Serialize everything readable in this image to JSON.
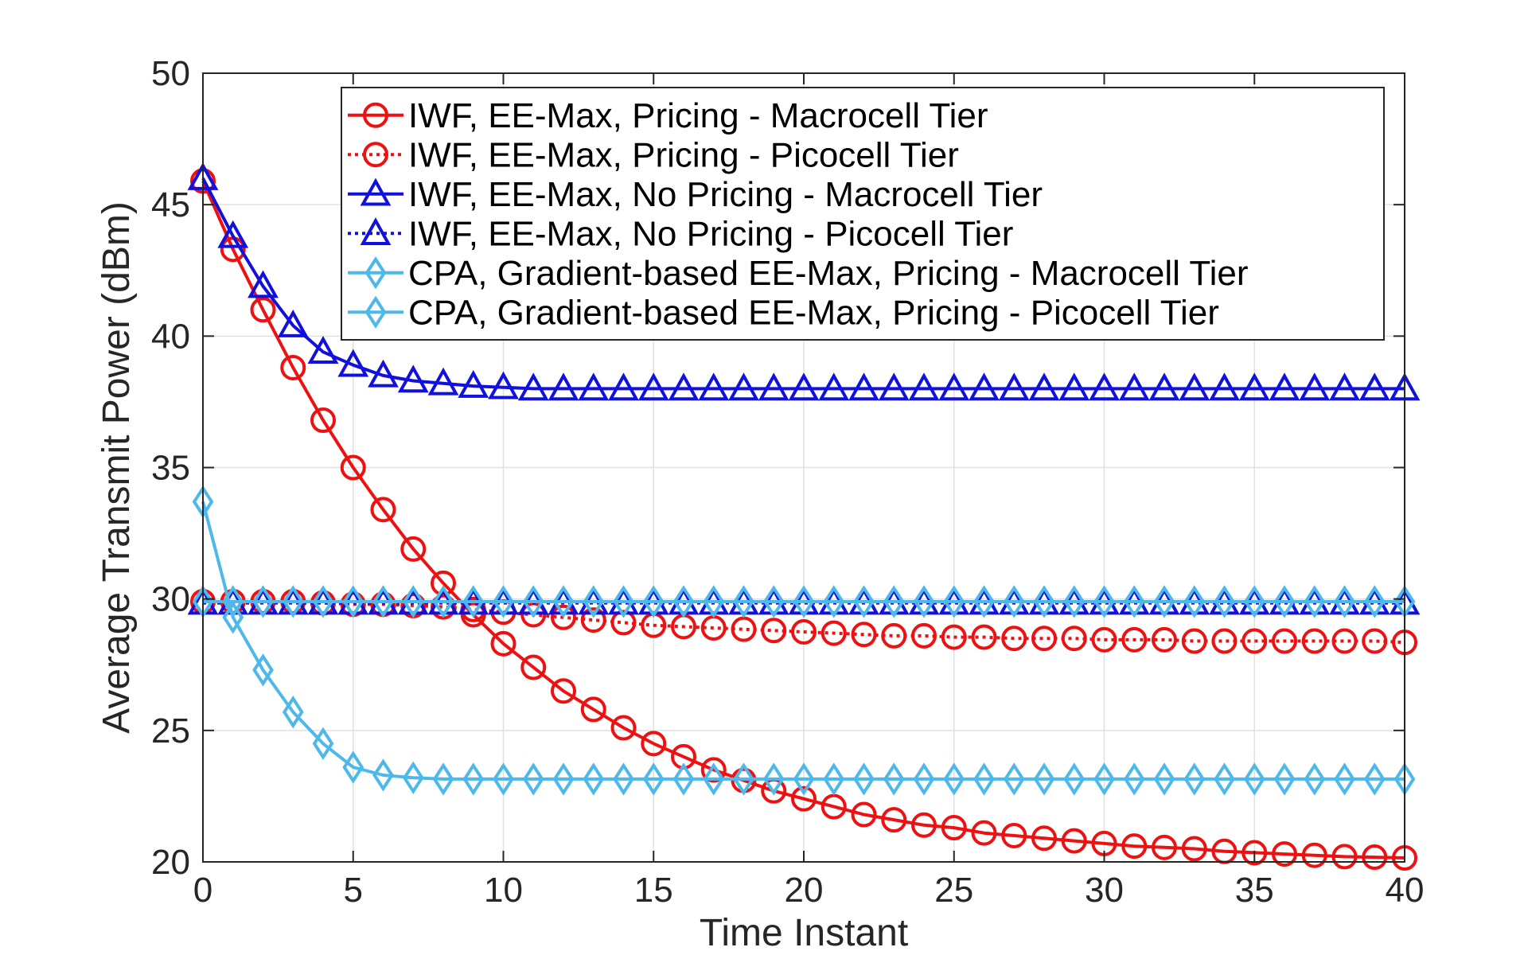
{
  "chart_data": {
    "type": "line",
    "title": "",
    "xlabel": "Time Instant",
    "ylabel": "Average Transmit Power (dBm)",
    "xlim": [
      0,
      40
    ],
    "ylim": [
      20,
      50
    ],
    "xticks": [
      0,
      5,
      10,
      15,
      20,
      25,
      30,
      35,
      40
    ],
    "yticks": [
      20,
      25,
      30,
      35,
      40,
      45,
      50
    ],
    "grid": true,
    "legend_position": "top-right",
    "x": [
      0,
      1,
      2,
      3,
      4,
      5,
      6,
      7,
      8,
      9,
      10,
      11,
      12,
      13,
      14,
      15,
      16,
      17,
      18,
      19,
      20,
      21,
      22,
      23,
      24,
      25,
      26,
      27,
      28,
      29,
      30,
      31,
      32,
      33,
      34,
      35,
      36,
      37,
      38,
      39,
      40
    ],
    "series": [
      {
        "name": "IWF, EE-Max, Pricing - Macrocell Tier",
        "color": "#ee1111",
        "line": "solid",
        "marker": "circle",
        "values": [
          45.9,
          43.3,
          41.0,
          38.8,
          36.8,
          35.0,
          33.4,
          31.9,
          30.6,
          29.4,
          28.3,
          27.4,
          26.5,
          25.8,
          25.1,
          24.5,
          24.0,
          23.5,
          23.1,
          22.7,
          22.4,
          22.1,
          21.8,
          21.6,
          21.4,
          21.3,
          21.1,
          21.0,
          20.9,
          20.8,
          20.7,
          20.6,
          20.55,
          20.5,
          20.4,
          20.35,
          20.3,
          20.25,
          20.2,
          20.18,
          20.15
        ]
      },
      {
        "name": "IWF, EE-Max, Pricing - Picocell Tier",
        "color": "#ee1111",
        "line": "dotted",
        "marker": "circle",
        "values": [
          29.9,
          29.9,
          29.9,
          29.9,
          29.85,
          29.8,
          29.8,
          29.75,
          29.7,
          29.6,
          29.5,
          29.4,
          29.3,
          29.2,
          29.1,
          29.0,
          28.95,
          28.9,
          28.85,
          28.8,
          28.75,
          28.7,
          28.65,
          28.6,
          28.6,
          28.55,
          28.55,
          28.5,
          28.5,
          28.5,
          28.45,
          28.45,
          28.45,
          28.4,
          28.4,
          28.4,
          28.4,
          28.4,
          28.4,
          28.4,
          28.35
        ]
      },
      {
        "name": "IWF, EE-Max, No Pricing - Macrocell Tier",
        "color": "#1111dd",
        "line": "solid",
        "marker": "triangle",
        "values": [
          46.0,
          43.8,
          41.9,
          40.4,
          39.4,
          38.9,
          38.5,
          38.3,
          38.2,
          38.1,
          38.05,
          38.0,
          38.0,
          38.0,
          38.0,
          38.0,
          38.0,
          38.0,
          38.0,
          38.0,
          38.0,
          38.0,
          38.0,
          38.0,
          38.0,
          38.0,
          38.0,
          38.0,
          38.0,
          38.0,
          38.0,
          38.0,
          38.0,
          38.0,
          38.0,
          38.0,
          38.0,
          38.0,
          38.0,
          38.0,
          38.0
        ]
      },
      {
        "name": "IWF, EE-Max, No Pricing - Picocell Tier",
        "color": "#1111dd",
        "line": "dotted",
        "marker": "triangle",
        "values": [
          29.85,
          29.85,
          29.85,
          29.85,
          29.85,
          29.85,
          29.85,
          29.85,
          29.85,
          29.85,
          29.85,
          29.85,
          29.85,
          29.85,
          29.85,
          29.85,
          29.85,
          29.85,
          29.85,
          29.85,
          29.85,
          29.85,
          29.85,
          29.85,
          29.85,
          29.85,
          29.85,
          29.85,
          29.85,
          29.85,
          29.85,
          29.85,
          29.85,
          29.85,
          29.85,
          29.85,
          29.85,
          29.85,
          29.85,
          29.85,
          29.85
        ]
      },
      {
        "name": "CPA, Gradient-based EE-Max, Pricing - Macrocell Tier",
        "color": "#4db8ea",
        "line": "solid",
        "marker": "diamond",
        "values": [
          33.7,
          29.3,
          27.3,
          25.7,
          24.5,
          23.6,
          23.3,
          23.2,
          23.15,
          23.15,
          23.15,
          23.15,
          23.15,
          23.15,
          23.15,
          23.15,
          23.15,
          23.15,
          23.15,
          23.15,
          23.15,
          23.15,
          23.15,
          23.15,
          23.15,
          23.15,
          23.15,
          23.15,
          23.15,
          23.15,
          23.15,
          23.15,
          23.15,
          23.15,
          23.15,
          23.15,
          23.15,
          23.15,
          23.15,
          23.15,
          23.15
        ]
      },
      {
        "name": "CPA, Gradient-based EE-Max, Pricing - Picocell Tier",
        "color": "#4db8ea",
        "line": "solid",
        "marker": "diamond",
        "values": [
          29.9,
          29.9,
          29.9,
          29.9,
          29.9,
          29.9,
          29.9,
          29.9,
          29.9,
          29.9,
          29.9,
          29.9,
          29.9,
          29.9,
          29.9,
          29.9,
          29.9,
          29.9,
          29.9,
          29.9,
          29.9,
          29.9,
          29.9,
          29.9,
          29.9,
          29.9,
          29.9,
          29.9,
          29.9,
          29.9,
          29.9,
          29.9,
          29.9,
          29.9,
          29.9,
          29.9,
          29.9,
          29.9,
          29.9,
          29.9,
          29.9
        ]
      }
    ]
  }
}
